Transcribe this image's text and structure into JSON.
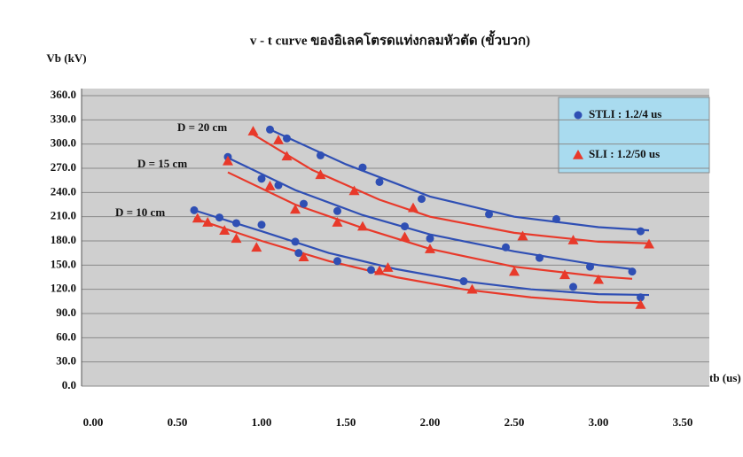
{
  "chart_data": {
    "type": "scatter",
    "title": "v - t curve ของอิเลคโตรดแท่งกลมหัวตัด (ขั้วบวก)",
    "y_label": "Vb (kV)",
    "x_label": "tb (us)",
    "annotations": [
      "D = 20 cm",
      "D = 15 cm",
      "D = 10 cm"
    ],
    "xlim": [
      0,
      3.5
    ],
    "xticks": [
      {
        "value": 0,
        "label": "0.00"
      },
      {
        "value": 0.5,
        "label": "0.50"
      },
      {
        "value": 1,
        "label": "1.00"
      },
      {
        "value": 1.5,
        "label": "1.50"
      },
      {
        "value": 2,
        "label": "2.00"
      },
      {
        "value": 2.5,
        "label": "2.50"
      },
      {
        "value": 3,
        "label": "3.00"
      },
      {
        "value": 3.5,
        "label": "3.50"
      }
    ],
    "ylim": [
      0,
      360
    ],
    "yticks": [
      {
        "value": 0,
        "label": "0.0"
      },
      {
        "value": 30,
        "label": "30.0"
      },
      {
        "value": 60,
        "label": "60.0"
      },
      {
        "value": 90,
        "label": "90.0"
      },
      {
        "value": 120,
        "label": "120.0"
      },
      {
        "value": 150,
        "label": "150.0"
      },
      {
        "value": 180,
        "label": "180.0"
      },
      {
        "value": 210,
        "label": "210.0"
      },
      {
        "value": 240,
        "label": "240.0"
      },
      {
        "value": 270,
        "label": "270.0"
      },
      {
        "value": 300,
        "label": "300.0"
      },
      {
        "value": 330,
        "label": "330.0"
      },
      {
        "value": 360,
        "label": "360.0"
      }
    ],
    "grid": true,
    "series": [
      {
        "name": "STLI : 1.2/4 us",
        "color": "#2f4fb4",
        "marker": "circle",
        "x": [
          1.05,
          1.15,
          1.35,
          1.6,
          1.7,
          1.95,
          2.35,
          2.75,
          3.25,
          0.8,
          1.0,
          1.1,
          1.25,
          1.45,
          1.85,
          2.0,
          2.45,
          2.65,
          2.95,
          3.2,
          0.6,
          0.75,
          0.85,
          1.0,
          1.2,
          1.22,
          1.45,
          1.65,
          2.2,
          2.85,
          3.25
        ],
        "values": [
          318,
          307,
          286,
          271,
          253,
          232,
          213,
          207,
          192,
          284,
          257,
          249,
          226,
          217,
          198,
          183,
          172,
          159,
          148,
          142,
          218,
          209,
          202,
          200,
          179,
          165,
          155,
          144,
          130,
          123,
          110
        ]
      },
      {
        "name": "SLI : 1.2/50 us",
        "color": "#e8392a",
        "marker": "triangle",
        "x": [
          0.62,
          0.68,
          0.78,
          0.85,
          0.97,
          0.8,
          1.05,
          1.2,
          1.25,
          1.15,
          0.95,
          1.1,
          1.35,
          1.45,
          1.55,
          1.6,
          1.7,
          1.75,
          1.85,
          1.9,
          2.0,
          2.25,
          2.5,
          2.55,
          2.8,
          2.85,
          3.0,
          3.25,
          3.3
        ],
        "values": [
          208,
          203,
          193,
          183,
          172,
          279,
          248,
          219,
          160,
          285,
          316,
          305,
          262,
          203,
          242,
          198,
          143,
          147,
          185,
          221,
          170,
          120,
          142,
          186,
          138,
          181,
          132,
          101,
          176
        ]
      }
    ],
    "trendlines": [
      {
        "color": "#2f4fb4",
        "x": [
          1.05,
          1.5,
          2.0,
          2.5,
          3.0,
          3.3
        ],
        "values": [
          318,
          275,
          235,
          210,
          197,
          193
        ]
      },
      {
        "color": "#2f4fb4",
        "x": [
          0.8,
          1.2,
          1.6,
          2.0,
          2.5,
          3.0,
          3.2
        ],
        "values": [
          283,
          243,
          212,
          188,
          167,
          150,
          145
        ]
      },
      {
        "color": "#2f4fb4",
        "x": [
          0.6,
          1.0,
          1.4,
          1.8,
          2.2,
          2.6,
          3.0,
          3.3
        ],
        "values": [
          218,
          192,
          165,
          145,
          130,
          120,
          114,
          113
        ]
      },
      {
        "color": "#e8392a",
        "x": [
          0.95,
          1.3,
          1.7,
          2.0,
          2.5,
          3.0,
          3.3
        ],
        "values": [
          312,
          268,
          231,
          210,
          190,
          179,
          177
        ]
      },
      {
        "color": "#e8392a",
        "x": [
          0.8,
          1.2,
          1.6,
          2.0,
          2.5,
          3.0,
          3.2
        ],
        "values": [
          265,
          225,
          196,
          170,
          148,
          136,
          133
        ]
      },
      {
        "color": "#e8392a",
        "x": [
          0.6,
          1.0,
          1.4,
          1.8,
          2.2,
          2.6,
          3.0,
          3.25
        ],
        "values": [
          208,
          180,
          155,
          135,
          120,
          110,
          104,
          103
        ]
      }
    ]
  }
}
